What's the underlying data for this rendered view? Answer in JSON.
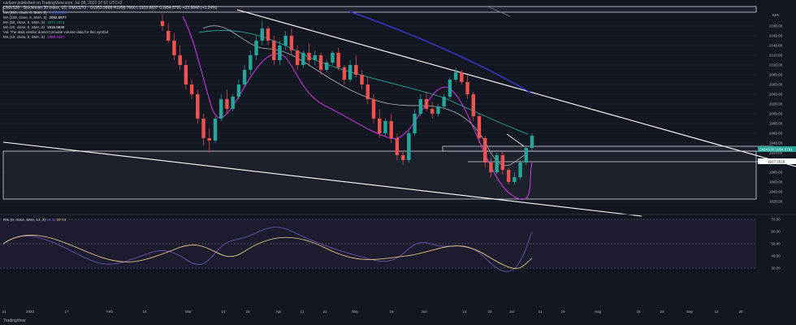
{
  "header": {
    "text": "carljam published on TradingView.com, Jul 08, 2022 07:07 UTC+2"
  },
  "legend": {
    "main": "OMXS30 · Stockholm 30 Index, 1D, OMXSTO · O1953.9888 H1958.7660 L1923.6837 C1954.5791 +23.9848 (+1.24%)",
    "items": [
      {
        "label": "MA (200, close, 0, SMA, 5)",
        "value": "2186.2523",
        "color": "#2962ff"
      },
      {
        "label": "MA (100, close, 0, SMA, 5)",
        "value": "2052.8977",
        "color": "#ffffff"
      },
      {
        "label": "MA (50, close, 0, SMA, 5)",
        "value": "1977.1813",
        "color": "#26a69a"
      },
      {
        "label": "MA (20, close, 0, SMA, 5)",
        "value": "1916.6848",
        "color": "#ffffff"
      },
      {
        "label": "Vol: The data vendor doesn't provide volume data for this symbol.",
        "value": "",
        "color": "#b2b5be"
      },
      {
        "label": "MA (10, close, 0, SMA, 5)",
        "value": "1899.2417",
        "color": "#e040fb"
      }
    ]
  },
  "rsi_legend": {
    "label": "RSI (9, close, SMA, 14, 2)",
    "value1": "59.32",
    "value2": "37.74"
  },
  "price_badges": {
    "current": "OMXS30  1954.5791",
    "line": "1917.2518"
  },
  "footer": "TradingView",
  "colors": {
    "background": "#131722",
    "up": "#26a69a",
    "down": "#ef5350",
    "ma10": "#e040fb",
    "ma200": "#3d3de8",
    "rsi": "#7e57c2",
    "rsi_ma": "#f5d58f"
  },
  "chart_data": {
    "type": "candlestick",
    "ylim": [
      1800,
      2220
    ],
    "yticks": [
      1820,
      1840,
      1860,
      1880,
      1900,
      1920,
      1940,
      1960,
      1980,
      2000,
      2020,
      2040,
      2060,
      2080,
      2100,
      2120,
      2140,
      2160,
      2180
    ],
    "y_unit": "SEK",
    "xticks": [
      "21",
      "2022",
      "17",
      "Feb",
      "14",
      "Mar",
      "14",
      "22",
      "Apr",
      "11",
      "21",
      "Maj",
      "16",
      "Jun",
      "13",
      "23",
      "Jul",
      "11",
      "19",
      "Aug",
      "15",
      "23",
      "Sep",
      "12",
      "20"
    ],
    "candles": [
      [
        2190,
        2205,
        2180,
        2170
      ],
      [
        2170,
        2185,
        2150,
        2145
      ],
      [
        2150,
        2165,
        2120,
        2110
      ],
      [
        2120,
        2140,
        2100,
        2090
      ],
      [
        2100,
        2110,
        2060,
        2050
      ],
      [
        2060,
        2070,
        2040,
        2030
      ],
      [
        2040,
        2050,
        1990,
        1980
      ],
      [
        1990,
        2000,
        1950,
        1935
      ],
      [
        1950,
        1970,
        1945,
        1920
      ],
      [
        1945,
        1995,
        1990,
        1940
      ],
      [
        1990,
        2040,
        2030,
        1985
      ],
      [
        2030,
        2050,
        2010,
        2000
      ],
      [
        2010,
        2040,
        2035,
        2005
      ],
      [
        2035,
        2070,
        2060,
        2030
      ],
      [
        2060,
        2100,
        2090,
        2055
      ],
      [
        2090,
        2130,
        2120,
        2080
      ],
      [
        2120,
        2160,
        2150,
        2110
      ],
      [
        2150,
        2190,
        2175,
        2140
      ],
      [
        2175,
        2180,
        2150,
        2140
      ],
      [
        2150,
        2160,
        2110,
        2100
      ],
      [
        2110,
        2150,
        2140,
        2100
      ],
      [
        2140,
        2170,
        2160,
        2130
      ],
      [
        2160,
        2175,
        2130,
        2120
      ],
      [
        2130,
        2140,
        2100,
        2090
      ],
      [
        2100,
        2130,
        2125,
        2095
      ],
      [
        2125,
        2145,
        2110,
        2100
      ],
      [
        2110,
        2130,
        2120,
        2100
      ],
      [
        2120,
        2125,
        2090,
        2080
      ],
      [
        2090,
        2110,
        2105,
        2085
      ],
      [
        2105,
        2130,
        2125,
        2100
      ],
      [
        2125,
        2135,
        2095,
        2090
      ],
      [
        2095,
        2100,
        2070,
        2060
      ],
      [
        2070,
        2110,
        2100,
        2065
      ],
      [
        2100,
        2120,
        2080,
        2075
      ],
      [
        2080,
        2090,
        2060,
        2050
      ],
      [
        2060,
        2075,
        2030,
        2020
      ],
      [
        2030,
        2040,
        1990,
        1980
      ],
      [
        1990,
        2010,
        1960,
        1950
      ],
      [
        1960,
        1990,
        1985,
        1955
      ],
      [
        1985,
        2000,
        1950,
        1940
      ],
      [
        1950,
        1960,
        1915,
        1905
      ],
      [
        1915,
        1925,
        1905,
        1895
      ],
      [
        1905,
        1965,
        1960,
        1900
      ],
      [
        1960,
        2010,
        2000,
        1955
      ],
      [
        2000,
        2040,
        2030,
        1995
      ],
      [
        2030,
        2045,
        2010,
        2005
      ],
      [
        2010,
        2025,
        2000,
        1990
      ],
      [
        2000,
        2020,
        2015,
        1995
      ],
      [
        2015,
        2040,
        2035,
        2010
      ],
      [
        2035,
        2075,
        2070,
        2030
      ],
      [
        2070,
        2095,
        2085,
        2065
      ],
      [
        2085,
        2090,
        2065,
        2060
      ],
      [
        2065,
        2080,
        2040,
        2030
      ],
      [
        2040,
        2045,
        1995,
        1985
      ],
      [
        1995,
        2000,
        1950,
        1940
      ],
      [
        1950,
        1955,
        1900,
        1890
      ],
      [
        1900,
        1910,
        1880,
        1870
      ],
      [
        1880,
        1920,
        1915,
        1875
      ],
      [
        1915,
        1925,
        1885,
        1875
      ],
      [
        1885,
        1890,
        1860,
        1855
      ],
      [
        1860,
        1880,
        1870,
        1855
      ],
      [
        1870,
        1905,
        1900,
        1865
      ],
      [
        1900,
        1935,
        1930,
        1895
      ],
      [
        1930,
        1960,
        1955,
        1925
      ]
    ]
  }
}
